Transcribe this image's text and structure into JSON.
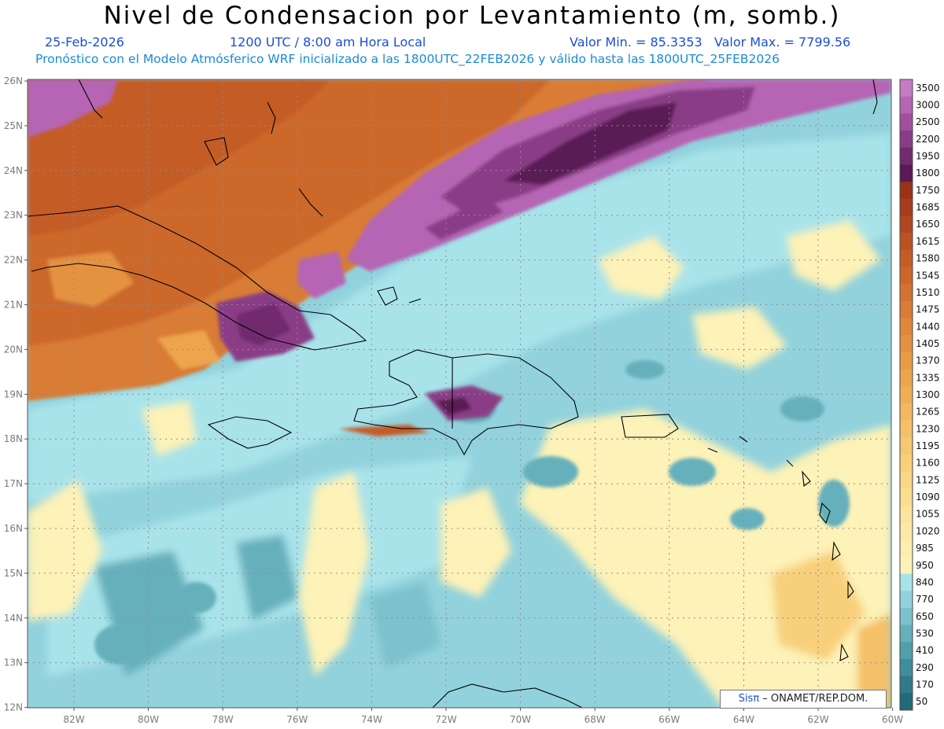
{
  "title": "Nivel de Condensacion por Levantamiento (m, somb.)",
  "date": "25-Feb-2026",
  "time": "1200 UTC / 8:00 am Hora Local",
  "minmax": "Valor Min. = 85.3353   Valor Max. = 7799.56",
  "forecast_note": "Pronóstico con el Modelo Atmósferico WRF inicializado a las 1800UTC_22FEB2026 y válido hasta las  1800UTC_25FEB2026",
  "credit_brand": "Sisπ",
  "credit_text": " – ONAMET/REP.DOM.",
  "lat_labels": [
    "26N",
    "25N",
    "24N",
    "23N",
    "22N",
    "21N",
    "20N",
    "19N",
    "18N",
    "17N",
    "16N",
    "15N",
    "14N",
    "13N",
    "12N"
  ],
  "lon_labels": [
    "82W",
    "80W",
    "78W",
    "76W",
    "74W",
    "72W",
    "70W",
    "68W",
    "66W",
    "64W",
    "62W",
    "60W"
  ],
  "legend": [
    {
      "label": "3500",
      "color": "#c77bc4"
    },
    {
      "label": "3000",
      "color": "#b565b3"
    },
    {
      "label": "2500",
      "color": "#a04f9e"
    },
    {
      "label": "2200",
      "color": "#8a3c86"
    },
    {
      "label": "1950",
      "color": "#722a6e"
    },
    {
      "label": "1800",
      "color": "#5a1a55"
    },
    {
      "label": "1750",
      "color": "#9a3218"
    },
    {
      "label": "1685",
      "color": "#a63c1c"
    },
    {
      "label": "1650",
      "color": "#b14720"
    },
    {
      "label": "1615",
      "color": "#bb5224"
    },
    {
      "label": "1580",
      "color": "#c45c28"
    },
    {
      "label": "1545",
      "color": "#cc672c"
    },
    {
      "label": "1510",
      "color": "#d37231"
    },
    {
      "label": "1475",
      "color": "#d97c36"
    },
    {
      "label": "1440",
      "color": "#df873b"
    },
    {
      "label": "1405",
      "color": "#e49141"
    },
    {
      "label": "1370",
      "color": "#e89b47"
    },
    {
      "label": "1335",
      "color": "#eca54e"
    },
    {
      "label": "1300",
      "color": "#efae56"
    },
    {
      "label": "1265",
      "color": "#f2b75f"
    },
    {
      "label": "1230",
      "color": "#f4c068"
    },
    {
      "label": "1195",
      "color": "#f6c872"
    },
    {
      "label": "1160",
      "color": "#f8d07c"
    },
    {
      "label": "1125",
      "color": "#f9d787"
    },
    {
      "label": "1090",
      "color": "#fade91"
    },
    {
      "label": "1055",
      "color": "#fbe49b"
    },
    {
      "label": "1020",
      "color": "#fce9a5"
    },
    {
      "label": "985",
      "color": "#fdeeae"
    },
    {
      "label": "950",
      "color": "#fdf2b7"
    },
    {
      "label": "840",
      "color": "#a9e3ea"
    },
    {
      "label": "770",
      "color": "#92d2dc"
    },
    {
      "label": "650",
      "color": "#7bc1cc"
    },
    {
      "label": "530",
      "color": "#66b0bc"
    },
    {
      "label": "410",
      "color": "#529fac"
    },
    {
      "label": "290",
      "color": "#408d9b"
    },
    {
      "label": "170",
      "color": "#2f7b8a"
    },
    {
      "label": "50",
      "color": "#206a79"
    }
  ],
  "colors": {
    "ocean_light": "#a9e3ea",
    "ocean_mid": "#7bc1cc",
    "ocean_dark": "#529fac",
    "sand": "#fdf2b7",
    "orange": "#d97c36",
    "orange_dark": "#bb5224",
    "purple": "#b565b3",
    "purple_dark": "#5a1a55"
  }
}
